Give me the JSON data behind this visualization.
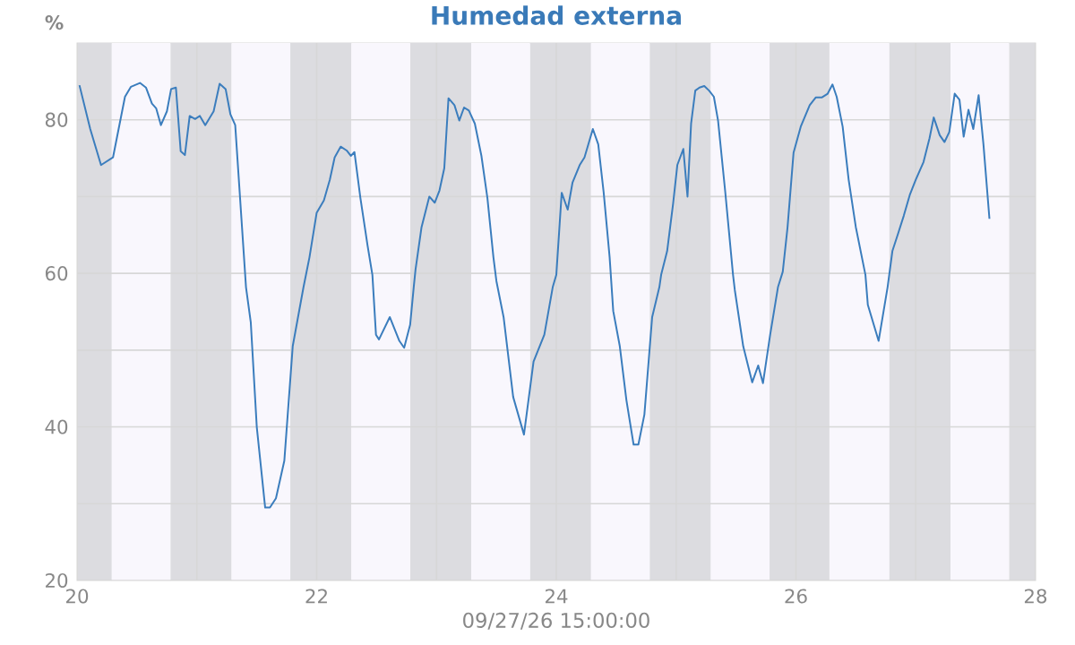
{
  "chart_data": {
    "type": "line",
    "title": "Humedad externa",
    "ylabel": "%",
    "xlabel": "09/27/26 15:00:00",
    "xlim": [
      20,
      28
    ],
    "ylim": [
      20,
      90
    ],
    "xticks": [
      20,
      {
        "value": 21,
        "label": null
      },
      22,
      {
        "value": 23,
        "label": null
      },
      24,
      {
        "value": 25,
        "label": null
      },
      26,
      {
        "value": 27,
        "label": null
      },
      28
    ],
    "yticks": [
      20,
      {
        "value": 30,
        "label": null
      },
      40,
      {
        "value": 50,
        "label": null
      },
      60,
      {
        "value": 70,
        "label": null
      },
      80
    ],
    "grid": true,
    "marker": "none",
    "line_style": "solid",
    "bands": [
      {
        "axis": "x",
        "from": 20,
        "to": 20.29,
        "color": "#dcdce0"
      },
      {
        "axis": "x",
        "from": 20.29,
        "to": 20.78,
        "color": "#f9f7fd"
      },
      {
        "axis": "x",
        "from": 20.78,
        "to": 21.29,
        "color": "#dcdce0"
      },
      {
        "axis": "x",
        "from": 21.29,
        "to": 21.78,
        "color": "#f9f7fd"
      },
      {
        "axis": "x",
        "from": 21.78,
        "to": 22.29,
        "color": "#dcdce0"
      },
      {
        "axis": "x",
        "from": 22.29,
        "to": 22.78,
        "color": "#f9f7fd"
      },
      {
        "axis": "x",
        "from": 22.78,
        "to": 23.29,
        "color": "#dcdce0"
      },
      {
        "axis": "x",
        "from": 23.29,
        "to": 23.78,
        "color": "#f9f7fd"
      },
      {
        "axis": "x",
        "from": 23.78,
        "to": 24.29,
        "color": "#dcdce0"
      },
      {
        "axis": "x",
        "from": 24.29,
        "to": 24.78,
        "color": "#f9f7fd"
      },
      {
        "axis": "x",
        "from": 24.78,
        "to": 25.29,
        "color": "#dcdce0"
      },
      {
        "axis": "x",
        "from": 25.29,
        "to": 25.78,
        "color": "#f9f7fd"
      },
      {
        "axis": "x",
        "from": 25.78,
        "to": 26.28,
        "color": "#dcdce0"
      },
      {
        "axis": "x",
        "from": 26.28,
        "to": 26.78,
        "color": "#f9f7fd"
      },
      {
        "axis": "x",
        "from": 26.78,
        "to": 27.29,
        "color": "#dcdce0"
      },
      {
        "axis": "x",
        "from": 27.29,
        "to": 27.78,
        "color": "#f9f7fd"
      },
      {
        "axis": "x",
        "from": 27.78,
        "to": 28,
        "color": "#dcdce0"
      }
    ],
    "series": [
      {
        "color": "#3b7dbd",
        "x": [
          20.02,
          20.11,
          20.2,
          20.3,
          20.4,
          20.45,
          20.525,
          20.575,
          20.625,
          20.66,
          20.7,
          20.75,
          20.785,
          20.825,
          20.865,
          20.9,
          20.94,
          20.985,
          21.025,
          21.07,
          21.14,
          21.19,
          21.24,
          21.28,
          21.32,
          21.41,
          21.45,
          21.5,
          21.57,
          21.61,
          21.66,
          21.73,
          21.8,
          21.89,
          21.94,
          22.0,
          22.06,
          22.11,
          22.15,
          22.2,
          22.25,
          22.285,
          22.315,
          22.365,
          22.425,
          22.465,
          22.495,
          22.52,
          22.61,
          22.69,
          22.73,
          22.78,
          22.81,
          22.825,
          22.875,
          22.94,
          22.985,
          23.025,
          23.065,
          23.1,
          23.15,
          23.19,
          23.23,
          23.27,
          23.32,
          23.375,
          23.425,
          23.475,
          23.5,
          23.56,
          23.64,
          23.73,
          23.81,
          23.9,
          23.97,
          24.0,
          24.045,
          24.095,
          24.135,
          24.195,
          24.235,
          24.305,
          24.35,
          24.395,
          24.445,
          24.475,
          24.53,
          24.585,
          24.645,
          24.685,
          24.735,
          24.8,
          24.86,
          24.875,
          24.925,
          24.975,
          25.01,
          25.06,
          25.095,
          25.125,
          25.16,
          25.195,
          25.235,
          25.275,
          25.315,
          25.35,
          25.41,
          25.475,
          25.49,
          25.56,
          25.635,
          25.685,
          25.725,
          25.785,
          25.85,
          25.89,
          25.93,
          25.98,
          26.04,
          26.115,
          26.165,
          26.215,
          26.265,
          26.305,
          26.34,
          26.39,
          26.44,
          26.5,
          26.58,
          26.6,
          26.69,
          26.765,
          26.805,
          26.855,
          26.9,
          26.95,
          27.0,
          27.065,
          27.115,
          27.15,
          27.2,
          27.24,
          27.28,
          27.325,
          27.365,
          27.4,
          27.44,
          27.48,
          27.525,
          27.565,
          27.615
        ],
        "values": [
          84.5,
          78.8,
          74.1,
          75.1,
          83.0,
          84.3,
          84.8,
          84.2,
          82.1,
          81.5,
          79.3,
          81.1,
          84.0,
          84.2,
          75.9,
          75.4,
          80.5,
          80.1,
          80.5,
          79.3,
          81.1,
          84.7,
          84.0,
          80.7,
          79.3,
          58.2,
          53.6,
          40.0,
          29.5,
          29.5,
          30.7,
          35.6,
          50.5,
          58.2,
          62.1,
          67.9,
          69.5,
          72.2,
          75.1,
          76.5,
          76.0,
          75.3,
          75.8,
          69.8,
          63.6,
          59.8,
          52.0,
          51.4,
          54.3,
          51.2,
          50.3,
          53.3,
          58.2,
          60.5,
          66.0,
          70.0,
          69.2,
          70.8,
          73.7,
          82.8,
          81.9,
          79.9,
          81.6,
          81.2,
          79.5,
          75.3,
          69.8,
          62.1,
          59.0,
          54.3,
          43.9,
          39.0,
          48.5,
          52.0,
          58.2,
          59.8,
          70.5,
          68.3,
          71.8,
          74.1,
          75.1,
          78.8,
          76.8,
          70.6,
          62.1,
          55.1,
          50.5,
          43.5,
          37.7,
          37.7,
          41.6,
          54.3,
          58.2,
          59.8,
          62.9,
          69.1,
          74.1,
          76.2,
          70.0,
          79.5,
          83.8,
          84.2,
          84.4,
          83.8,
          83.0,
          79.9,
          70.6,
          59.8,
          57.8,
          50.5,
          45.8,
          48.0,
          45.7,
          52.0,
          58.2,
          60.2,
          66.0,
          75.7,
          79.1,
          81.9,
          82.9,
          82.9,
          83.4,
          84.6,
          83.0,
          79.1,
          72.2,
          66.0,
          59.8,
          55.9,
          51.2,
          58.2,
          62.9,
          65.3,
          67.5,
          70.2,
          72.2,
          74.5,
          77.6,
          80.3,
          78.0,
          77.1,
          78.4,
          83.4,
          82.6,
          77.8,
          81.3,
          78.8,
          83.2,
          76.8,
          67.1
        ]
      }
    ]
  }
}
